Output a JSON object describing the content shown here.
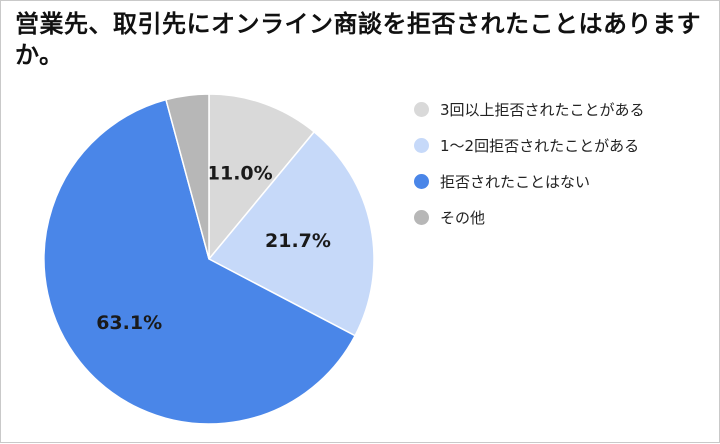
{
  "chart_data": {
    "type": "pie",
    "title": "営業先、取引先にオンライン商談を拒否されたことはありますか。",
    "slices": [
      {
        "label": "3回以上拒否されたことがある",
        "value": 11.0,
        "value_label": "11.0%",
        "color": "#d9d9d9"
      },
      {
        "label": "1〜2回拒否されたことがある",
        "value": 21.7,
        "value_label": "21.7%",
        "color": "#c6d9f9"
      },
      {
        "label": "拒否されたことはない",
        "value": 63.1,
        "value_label": "63.1%",
        "color": "#4a86e8"
      },
      {
        "label": "その他",
        "value": 4.2,
        "value_label": "",
        "color": "#b7b7b7"
      }
    ],
    "start_angle": "12 o'clock",
    "direction": "clockwise",
    "legend_position": "right"
  }
}
